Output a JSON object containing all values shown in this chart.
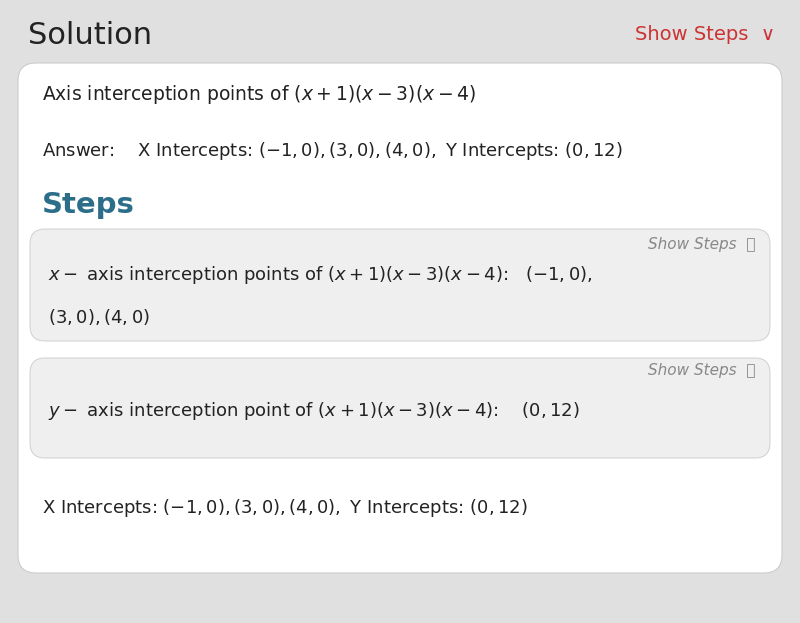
{
  "bg_color": "#e0e0e0",
  "white_card_color": "#ffffff",
  "gray_box_color": "#efefef",
  "title": "Solution",
  "show_steps_label": "Show Steps",
  "show_steps_color": "#cc3333",
  "title_color": "#222222",
  "title_fontsize": 22,
  "steps_heading": "Steps",
  "steps_heading_color": "#2c6e8a",
  "show_steps_fontsize": 12,
  "body_fontsize": 13,
  "answer_fontsize": 13
}
